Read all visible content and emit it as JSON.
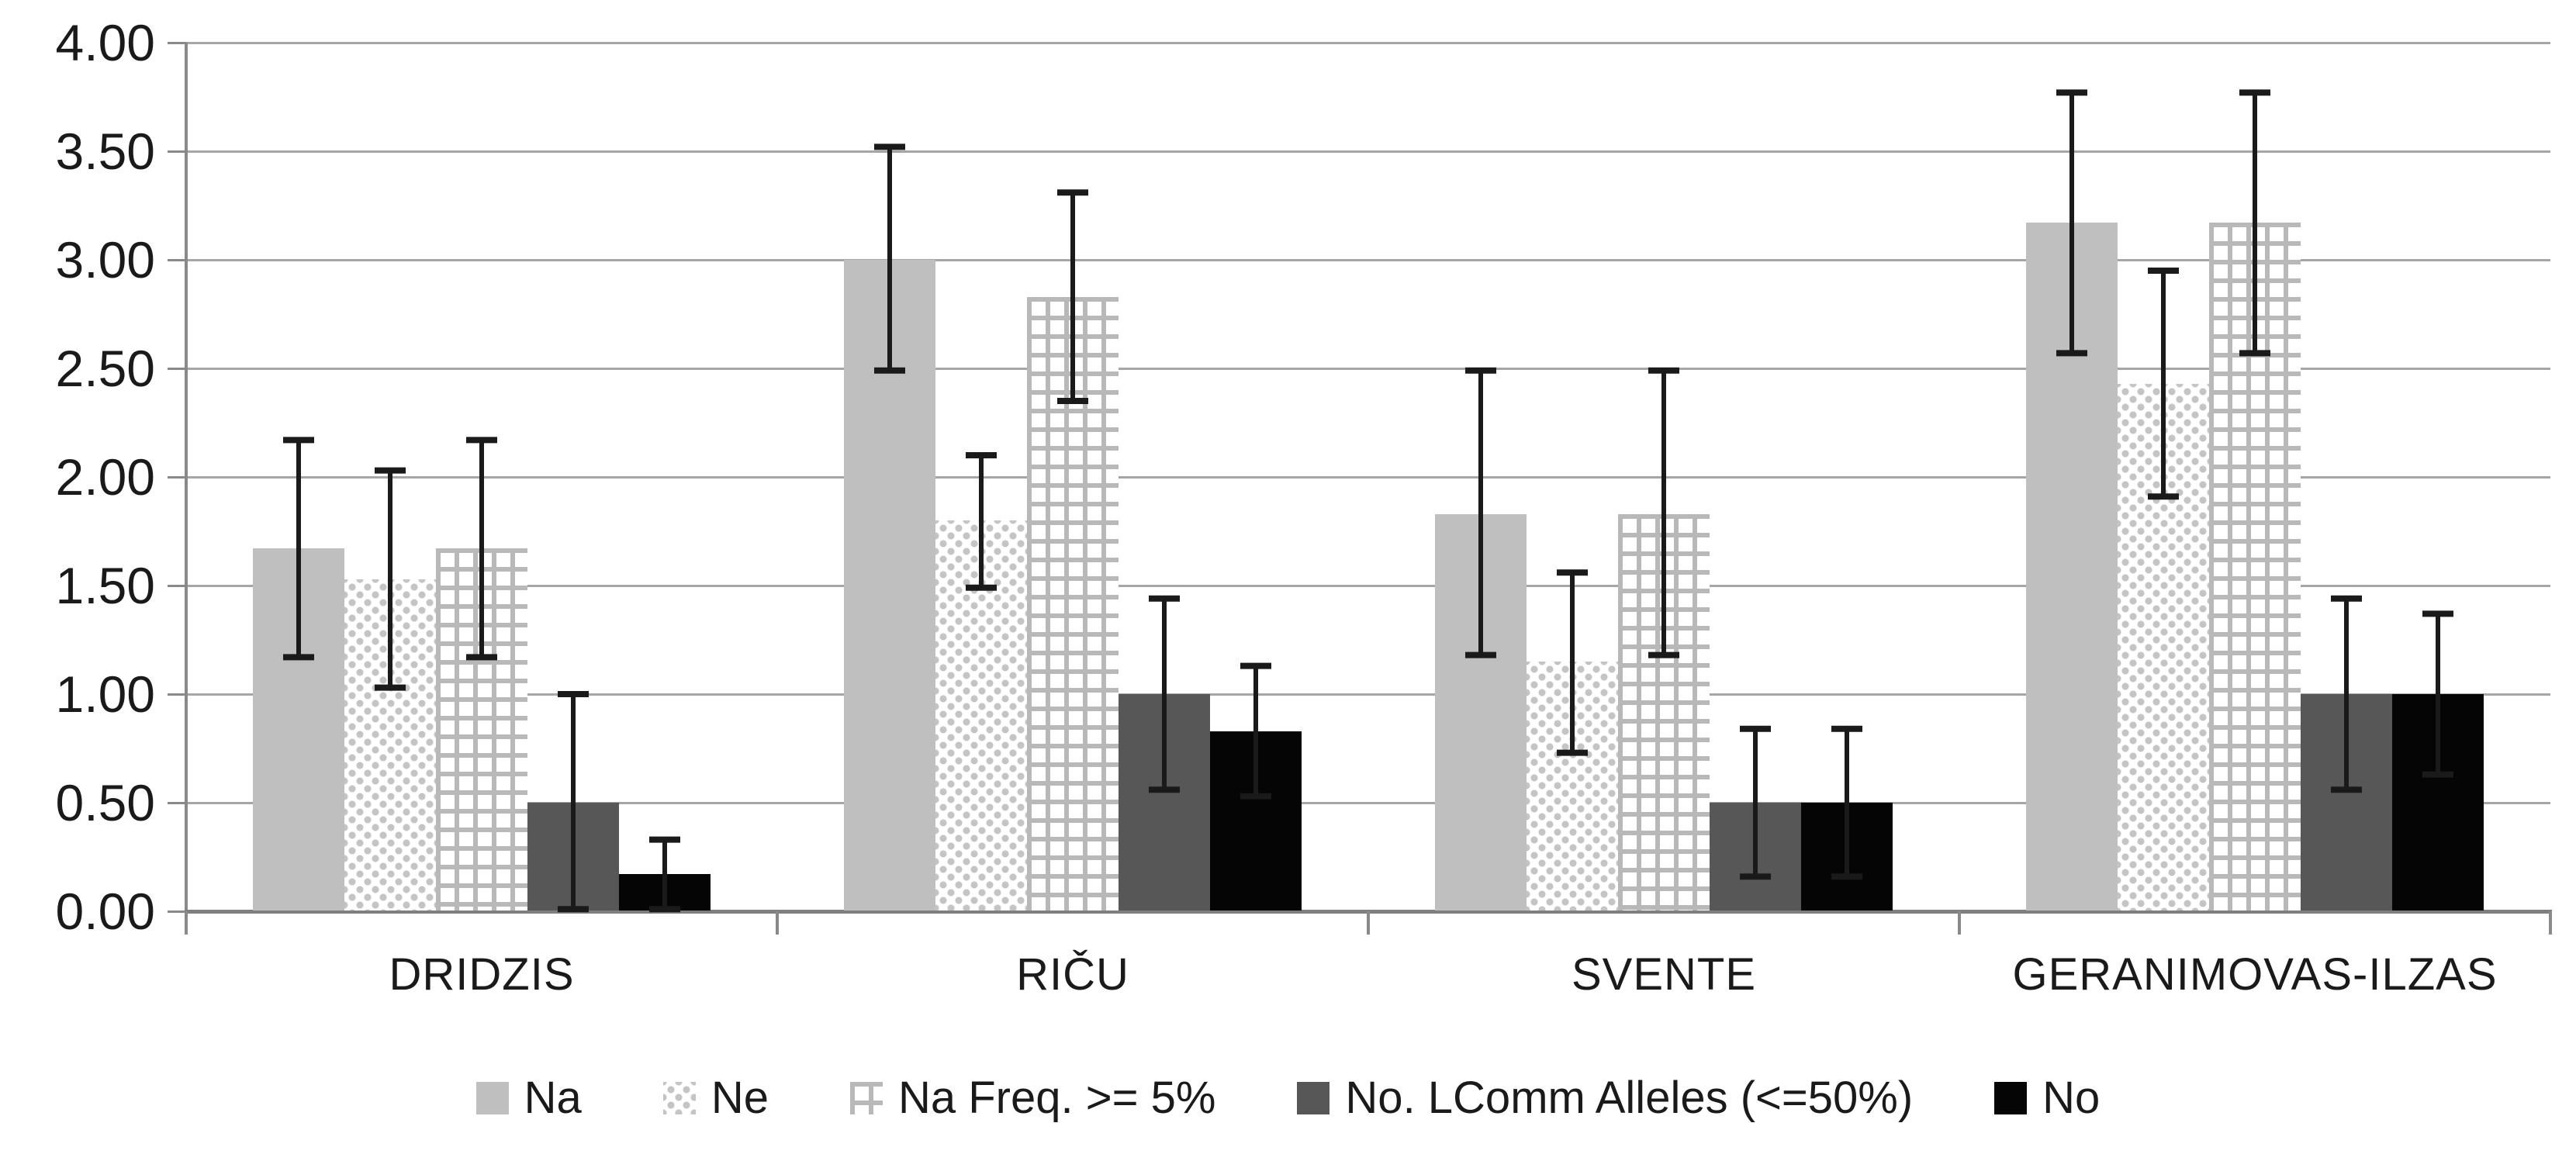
{
  "chart_data": {
    "type": "bar",
    "title": "",
    "xlabel": "",
    "ylabel": "",
    "grid": true,
    "legend_position": "bottom",
    "categories": [
      "DRIDZIS",
      "RIČU",
      "SVENTE",
      "GERANIMOVAS-ILZAS"
    ],
    "y_axis": {
      "min": 0,
      "max": 4,
      "step": 0.5,
      "tick_labels": [
        "0.00",
        "0.50",
        "1.00",
        "1.50",
        "2.00",
        "2.50",
        "3.00",
        "3.50",
        "4.00"
      ]
    },
    "series": [
      {
        "name": "Na",
        "pattern": "solid-light-gray",
        "color": "#bfbfbf",
        "values": [
          1.67,
          3.0,
          1.83,
          3.17
        ],
        "error_low": [
          1.17,
          2.49,
          1.18,
          2.57
        ],
        "error_high": [
          2.17,
          3.52,
          2.49,
          3.77
        ]
      },
      {
        "name": "Ne",
        "pattern": "diamond-dots",
        "color": "#c4c4c4",
        "values": [
          1.53,
          1.8,
          1.15,
          2.43
        ],
        "error_low": [
          1.03,
          1.49,
          0.73,
          1.91
        ],
        "error_high": [
          2.03,
          2.1,
          1.56,
          2.95
        ]
      },
      {
        "name": "Na Freq. >= 5%",
        "pattern": "grid",
        "color": "#b8b8b8",
        "values": [
          1.67,
          2.83,
          1.83,
          3.17
        ],
        "error_low": [
          1.17,
          2.35,
          1.18,
          2.57
        ],
        "error_high": [
          2.17,
          3.31,
          2.49,
          3.77
        ]
      },
      {
        "name": "No. LComm Alleles (<=50%)",
        "pattern": "solid-dark-gray",
        "color": "#575757",
        "values": [
          0.5,
          1.0,
          0.5,
          1.0
        ],
        "error_low": [
          0.01,
          0.56,
          0.16,
          0.56
        ],
        "error_high": [
          1.0,
          1.44,
          0.84,
          1.44
        ]
      },
      {
        "name": "No",
        "pattern": "solid-black",
        "color": "#050505",
        "values": [
          0.17,
          0.83,
          0.5,
          1.0
        ],
        "error_low": [
          0.01,
          0.53,
          0.16,
          0.63
        ],
        "error_high": [
          0.33,
          1.13,
          0.84,
          1.37
        ]
      }
    ],
    "error_bar_color": "#1a1a1a",
    "gridline_color": "#a6a6a6",
    "axis_color": "#7f7f7f"
  }
}
